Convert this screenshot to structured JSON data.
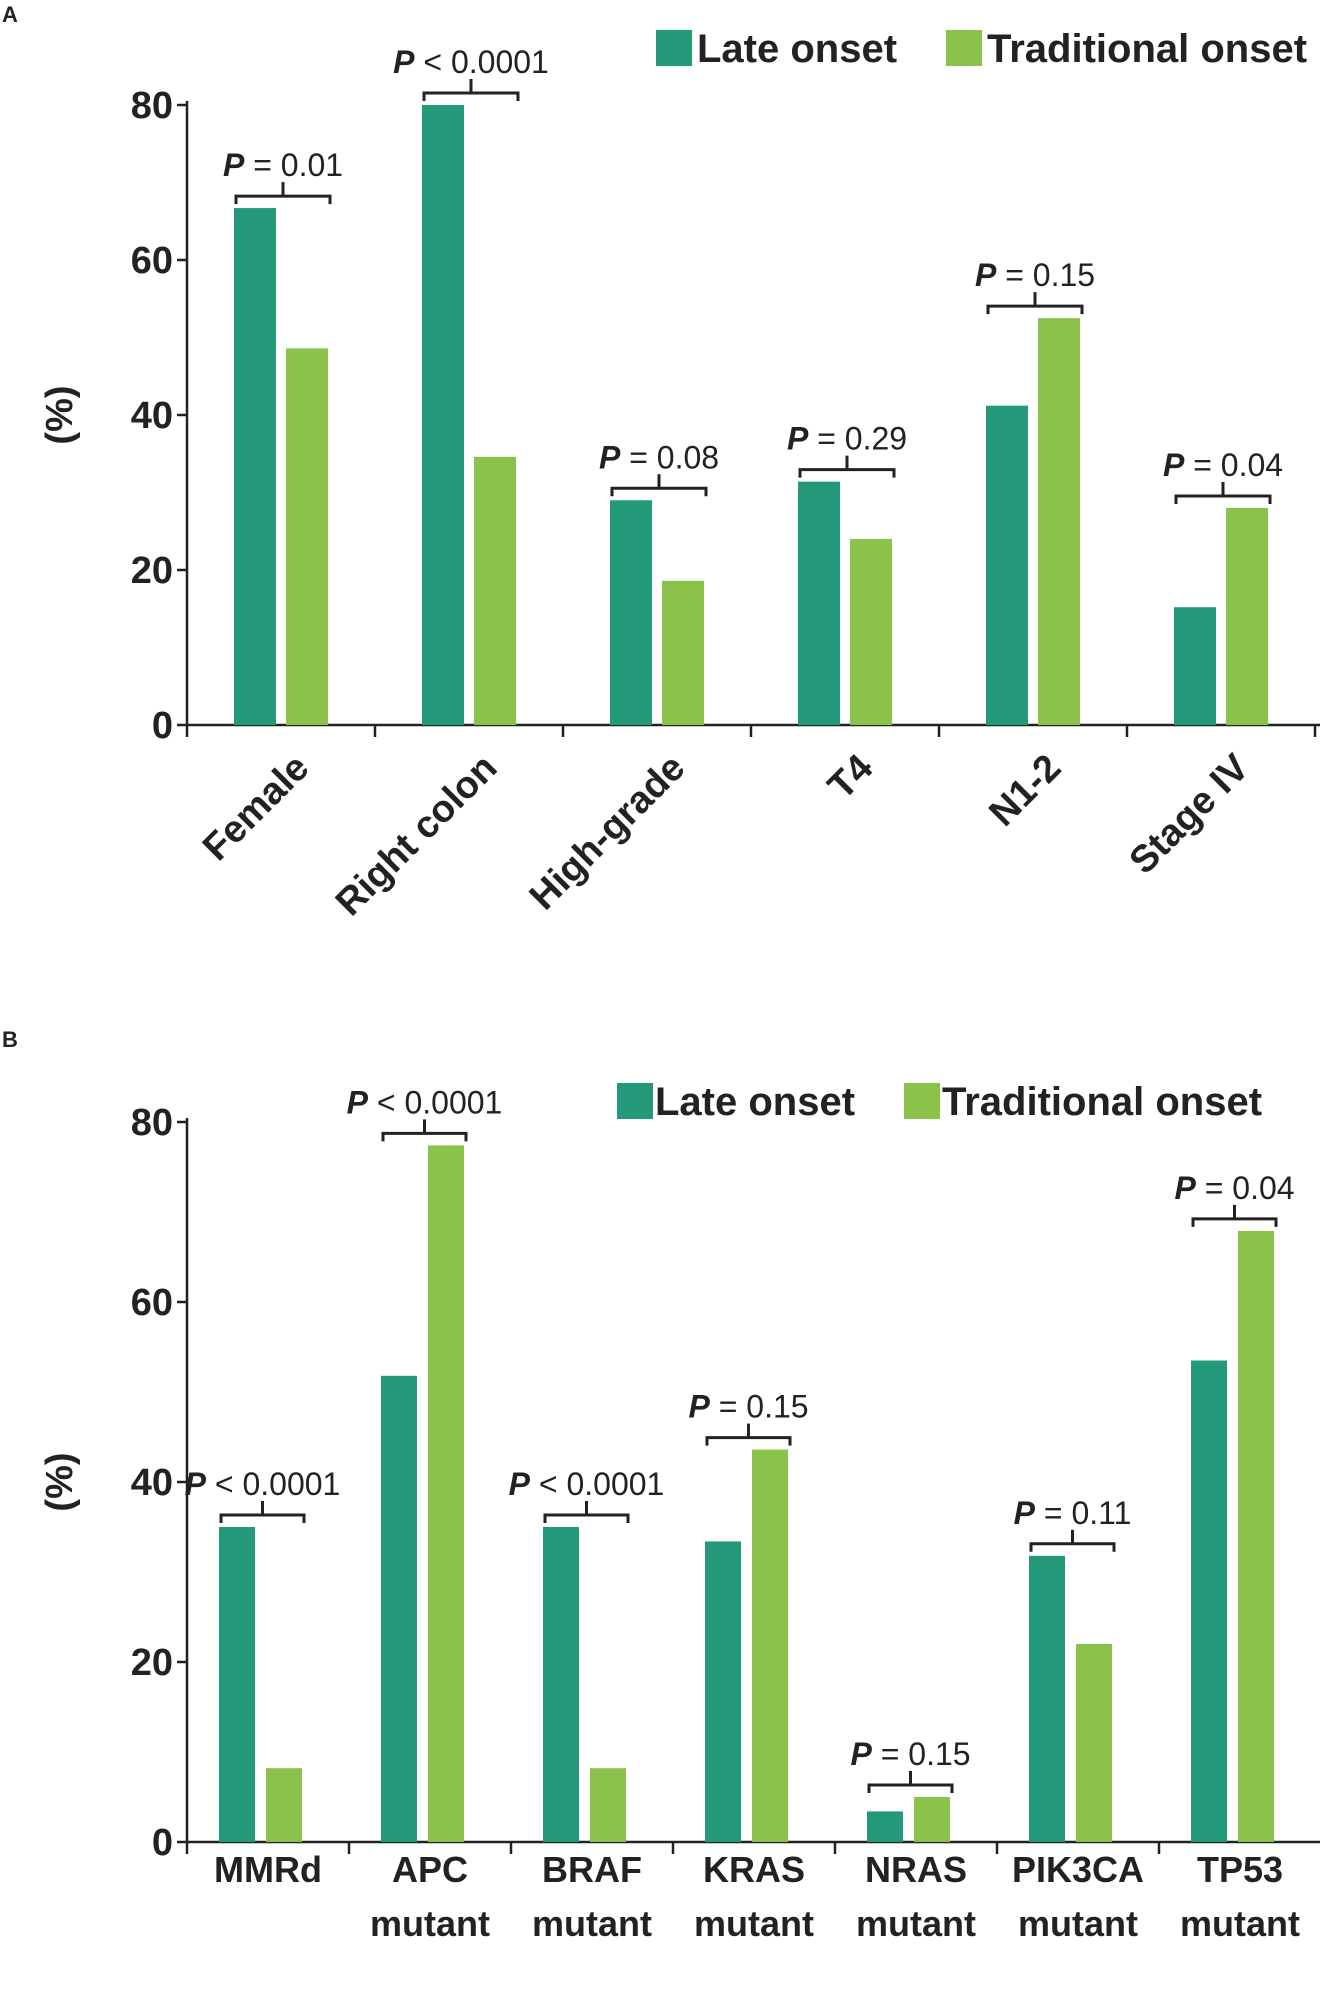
{
  "colors": {
    "late": "#23997a",
    "traditional": "#8bc34a"
  },
  "chart_data": [
    {
      "panel": "A",
      "type": "bar",
      "ylabel": "(%)",
      "ylim": [
        0,
        80
      ],
      "yticks": [
        "0",
        "20",
        "40",
        "60",
        "80"
      ],
      "legend_position": "top-right",
      "categories": [
        "Female",
        "Right colon",
        "High-grade",
        "T4",
        "N1-2",
        "Stage IV"
      ],
      "series": [
        {
          "name": "Late onset",
          "values": [
            66.7,
            80,
            29,
            31.4,
            41.2,
            15.2
          ]
        },
        {
          "name": "Traditional onset",
          "values": [
            48.6,
            34.6,
            18.6,
            24,
            52.5,
            28
          ]
        }
      ],
      "pvalues": [
        {
          "p": "P",
          "rest": " = 0.01"
        },
        {
          "p": "P",
          "rest": " < 0.0001"
        },
        {
          "p": "P",
          "rest": " = 0.08"
        },
        {
          "p": "P",
          "rest": " = 0.29"
        },
        {
          "p": "P",
          "rest": " = 0.15"
        },
        {
          "p": "P",
          "rest": " = 0.04"
        }
      ]
    },
    {
      "panel": "B",
      "type": "bar",
      "ylabel": "(%)",
      "ylim": [
        0,
        80
      ],
      "yticks": [
        "0",
        "20",
        "40",
        "60",
        "80"
      ],
      "legend_position": "top-right",
      "categories": [
        [
          "MMRd"
        ],
        [
          "APC",
          "mutant"
        ],
        [
          "BRAF",
          "mutant"
        ],
        [
          "KRAS",
          "mutant"
        ],
        [
          "NRAS",
          "mutant"
        ],
        [
          "PIK3CA",
          "mutant"
        ],
        [
          "TP53",
          "mutant"
        ]
      ],
      "series": [
        {
          "name": "Late onset",
          "values": [
            35,
            51.8,
            35,
            33.4,
            3.4,
            31.8,
            53.5
          ]
        },
        {
          "name": "Traditional onset",
          "values": [
            8.2,
            77.4,
            8.2,
            43.6,
            5,
            22,
            67.9
          ]
        }
      ],
      "pvalues": [
        {
          "p": "P",
          "rest": " < 0.0001"
        },
        {
          "p": "P",
          "rest": " < 0.0001"
        },
        {
          "p": "P",
          "rest": " < 0.0001"
        },
        {
          "p": "P",
          "rest": " = 0.15"
        },
        {
          "p": "P",
          "rest": " = 0.15"
        },
        {
          "p": "P",
          "rest": " = 0.11"
        },
        {
          "p": "P",
          "rest": " = 0.04"
        }
      ]
    }
  ]
}
